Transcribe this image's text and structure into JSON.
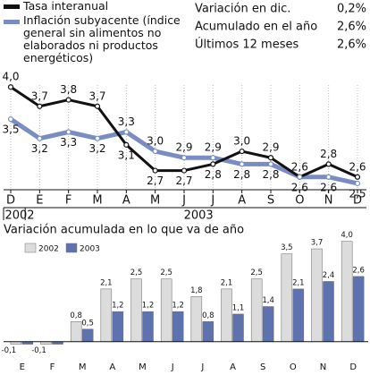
{
  "summary": [
    {
      "label": "Variación en dic.",
      "value": "0,2%"
    },
    {
      "label": "Acumulado en el año",
      "value": "2,6%"
    },
    {
      "label": "Últimos 12 meses",
      "value": "2,6%"
    }
  ],
  "chart_data": [
    {
      "type": "line",
      "categories": [
        "D",
        "E",
        "F",
        "M",
        "A",
        "M",
        "J",
        "J",
        "A",
        "S",
        "O",
        "N",
        "D"
      ],
      "year_groups": [
        {
          "label": "2002",
          "first": 0,
          "last": 0
        },
        {
          "label": "2003",
          "first": 1,
          "last": 12
        }
      ],
      "ylim": [
        2.36,
        4.24
      ],
      "legend": "top-left",
      "series": [
        {
          "name": "Tasa interanual",
          "color": "#111111",
          "values": [
            4.0,
            3.7,
            3.8,
            3.7,
            3.1,
            2.7,
            2.7,
            2.8,
            3.0,
            2.9,
            2.6,
            2.8,
            2.6
          ],
          "value_labels": [
            "4,0",
            "3,7",
            "3,8",
            "3,7",
            "3,1",
            "2,7",
            "2,7",
            "2,8",
            "3,0",
            "2,9",
            "2,6",
            "2,8",
            "2,6"
          ]
        },
        {
          "name": "Inflación subyacente (índice general sin alimentos no elaborados ni productos energéticos)",
          "color": "#7a8cc4",
          "values": [
            3.5,
            3.2,
            3.3,
            3.2,
            3.3,
            3.0,
            2.9,
            2.9,
            2.8,
            2.8,
            2.6,
            2.6,
            2.5
          ],
          "value_labels": [
            "3,5",
            "3,2",
            "3,3",
            "3,2",
            "3,3",
            "3,0",
            "2,9",
            "2,9",
            "2,8",
            "2,8",
            "2,6",
            "2,6",
            "2,5"
          ]
        }
      ]
    },
    {
      "type": "bar",
      "title": "Variación acumulada en lo que va de año",
      "categories": [
        "E",
        "F",
        "M",
        "A",
        "M",
        "J",
        "J",
        "A",
        "S",
        "O",
        "N",
        "D"
      ],
      "ylim": [
        -0.4,
        4.2
      ],
      "legend": "top-left",
      "series": [
        {
          "name": "2002",
          "color": "#dcdcdc",
          "values": [
            -0.1,
            -0.1,
            0.8,
            2.1,
            2.5,
            2.5,
            1.8,
            2.1,
            2.5,
            3.5,
            3.7,
            4.0
          ],
          "value_labels": [
            "-0,1",
            "-0,1",
            "0,8",
            "2,1",
            "2,5",
            "2,5",
            "1,8",
            "2,1",
            "2,5",
            "3,5",
            "3,7",
            "4,0"
          ]
        },
        {
          "name": "2003",
          "color": "#5f72b0",
          "values": [
            -0.1,
            -0.1,
            0.5,
            1.2,
            1.2,
            1.2,
            0.8,
            1.1,
            1.4,
            2.1,
            2.4,
            2.6
          ],
          "value_labels": [
            null,
            null,
            "0,5",
            "1,2",
            "1,2",
            "1,2",
            "0,8",
            "1,1",
            "1,4",
            "2,1",
            "2,4",
            "2,6"
          ]
        }
      ]
    }
  ]
}
